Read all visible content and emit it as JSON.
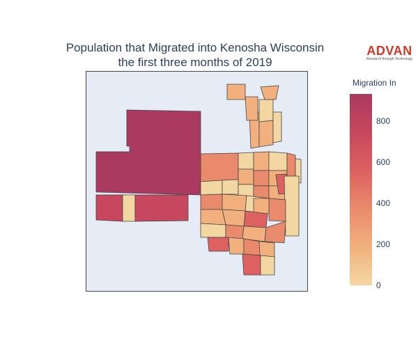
{
  "title": {
    "line1": "Population that Migrated into Kenosha Wisconsin",
    "line2": "the first three months of 2019"
  },
  "logo": {
    "word": "ADVAN",
    "tagline": "Research through Technology"
  },
  "legend": {
    "title": "Migration In",
    "ticks": [
      "800",
      "600",
      "400",
      "200",
      "0"
    ],
    "colorscale": [
      "#f3d7a3",
      "#f2b07e",
      "#ea8a6c",
      "#dc6160",
      "#c6475e",
      "#aa3a5f"
    ],
    "range": [
      0,
      950
    ]
  },
  "colors": {
    "background": "#e5ecf6",
    "border": "#444444"
  }
}
